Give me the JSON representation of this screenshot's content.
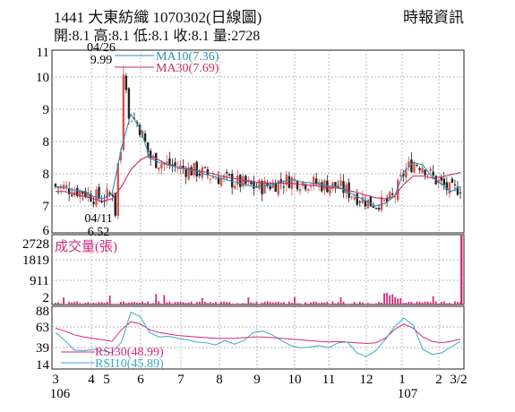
{
  "header": {
    "title": "1441  大東紡織 1070302(日線圖)",
    "source": "時報資訊",
    "ohlc": "開:8.1 高:8.1 低:8.1 收:8.1 量:2728"
  },
  "colors": {
    "up": "#d9544f",
    "down": "#222222",
    "ma10": "#2e8fb0",
    "ma30": "#c4306b",
    "volume": "#d42a7a",
    "rsi30": "#d42a7a",
    "rsi10": "#3aa9c9",
    "grid": "#9aa0a6"
  },
  "chart_data": [
    {
      "type": "candlestick",
      "panel": "price",
      "ylim": [
        6,
        11
      ],
      "y_ticks": [
        "6",
        "7",
        "8",
        "8",
        "9",
        "10",
        "11"
      ],
      "x_ticks": [
        "3",
        "4",
        "5",
        "6",
        "7",
        "8",
        "9",
        "10",
        "11",
        "12",
        "1",
        "2",
        "3/2"
      ],
      "x_subticks": [
        "106",
        "107"
      ],
      "annotations": [
        {
          "date": "04/26",
          "value": "9.99"
        },
        {
          "date": "04/11",
          "value": "6.52"
        }
      ],
      "series": [
        {
          "name": "MA10(7.36)"
        },
        {
          "name": "MA30(7.69)"
        }
      ],
      "ma10": [
        7.4,
        7.38,
        7.33,
        7.3,
        7.2,
        7.15,
        7.25,
        8.2,
        8.9,
        8.6,
        8.0,
        7.9,
        7.85,
        7.8,
        7.75,
        7.72,
        7.65,
        7.6,
        7.55,
        7.5,
        7.45,
        7.4,
        7.4,
        7.45,
        7.5,
        7.55,
        7.5,
        7.48,
        7.45,
        7.42,
        7.4,
        7.3,
        7.2,
        7.1,
        7.0,
        7.05,
        7.2,
        7.7,
        7.9,
        7.85,
        7.6,
        7.45,
        7.3,
        7.4
      ],
      "ma30": [
        7.3,
        7.3,
        7.25,
        7.2,
        7.15,
        7.1,
        7.15,
        7.4,
        7.75,
        7.95,
        8.05,
        7.95,
        7.85,
        7.8,
        7.77,
        7.73,
        7.7,
        7.65,
        7.6,
        7.57,
        7.53,
        7.5,
        7.48,
        7.47,
        7.47,
        7.47,
        7.45,
        7.43,
        7.41,
        7.39,
        7.37,
        7.33,
        7.28,
        7.22,
        7.17,
        7.15,
        7.2,
        7.45,
        7.62,
        7.62,
        7.58,
        7.6,
        7.65,
        7.69
      ]
    },
    {
      "type": "bar",
      "panel": "volume",
      "title": "成交量(張)",
      "ylim": [
        0,
        2728
      ],
      "y_ticks": [
        "2728",
        "1819",
        "911",
        "2"
      ],
      "last_value": 2728
    },
    {
      "type": "line",
      "panel": "rsi",
      "ylim": [
        14,
        88
      ],
      "y_ticks": [
        "88",
        "63",
        "39",
        "14"
      ],
      "series": [
        {
          "name": "RSI30(48.99)",
          "values": [
            64,
            60,
            55,
            52,
            50,
            48,
            46,
            62,
            73,
            70,
            62,
            58,
            56,
            54,
            53,
            52,
            51,
            50,
            50,
            50,
            51,
            52,
            52,
            51,
            50,
            49,
            48,
            47,
            46,
            45,
            46,
            45,
            44,
            43,
            44,
            50,
            62,
            70,
            64,
            52,
            46,
            44,
            46,
            49
          ]
        },
        {
          "name": "RSI10(45.89)",
          "values": [
            58,
            47,
            34,
            33,
            35,
            33,
            30,
            45,
            86,
            80,
            58,
            52,
            53,
            50,
            48,
            45,
            44,
            41,
            47,
            42,
            47,
            58,
            60,
            55,
            47,
            40,
            37,
            38,
            40,
            37,
            44,
            45,
            30,
            25,
            33,
            48,
            66,
            78,
            68,
            35,
            28,
            30,
            38,
            46
          ]
        }
      ]
    }
  ]
}
